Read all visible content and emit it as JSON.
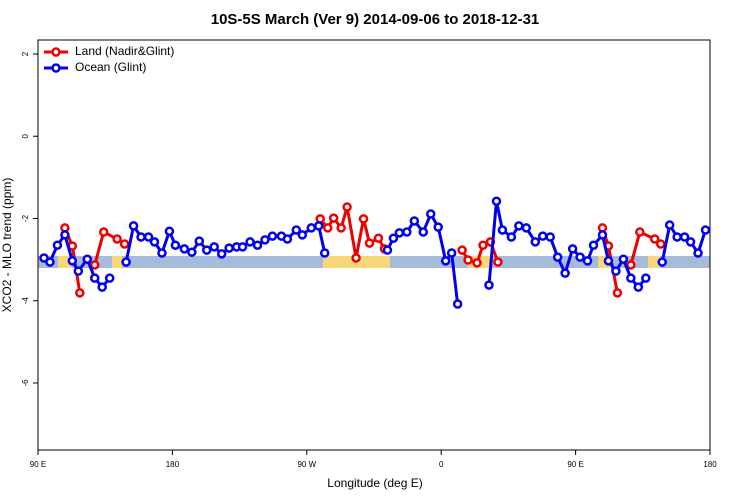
{
  "chart_data": {
    "type": "line",
    "title": "10S-5S March (Ver 9)   2014-09-06 to 2018-12-31",
    "x_label": "Longitude (deg E)",
    "y_label": "XCO2 - MLO trend (ppm)",
    "xlim": [
      90,
      540
    ],
    "xticks": [
      {
        "value": 90,
        "label": "90 E"
      },
      {
        "value": 180,
        "label": "180"
      },
      {
        "value": 270,
        "label": "90 W"
      },
      {
        "value": 360,
        "label": "0"
      },
      {
        "value": 450,
        "label": "90 E"
      },
      {
        "value": 540,
        "label": "180"
      }
    ],
    "ylim": [
      -7.63,
      2.34
    ],
    "yticks": [
      2,
      0,
      -2,
      -4,
      -6
    ],
    "legend": "top-left",
    "series": [
      {
        "name": "Land (Nadir&Glint)",
        "color": "#ee0000",
        "x": [
          108,
          113,
          118,
          null,
          128,
          134,
          143,
          148,
          null,
          279,
          284,
          288,
          293,
          297,
          303,
          308,
          312,
          318,
          322,
          null,
          374,
          378,
          384,
          388,
          393,
          398,
          null,
          468,
          472,
          478,
          null,
          487,
          493,
          503,
          507
        ],
        "values": [
          -2.23,
          -2.67,
          -3.81,
          null,
          -3.13,
          -2.33,
          -2.5,
          -2.62,
          null,
          -2.01,
          -2.23,
          -1.99,
          -2.23,
          -1.72,
          -2.96,
          -2.01,
          -2.6,
          -2.48,
          -2.74,
          null,
          -2.77,
          -3.01,
          -3.08,
          -2.65,
          -2.57,
          -3.06,
          null,
          -2.23,
          -2.67,
          -3.81,
          null,
          -3.13,
          -2.33,
          -2.5,
          -2.62
        ]
      },
      {
        "name": "Ocean (Glint)",
        "color": "#0000ee",
        "x": [
          94,
          98,
          103,
          108,
          113,
          117,
          123,
          128,
          133,
          138,
          null,
          149,
          154,
          159,
          164,
          168,
          173,
          178,
          182,
          188,
          193,
          198,
          203,
          208,
          213,
          218,
          223,
          227,
          232,
          237,
          242,
          247,
          253,
          257,
          263,
          267,
          273,
          278,
          282,
          null,
          324,
          328,
          332,
          337,
          342,
          348,
          353,
          358,
          363,
          367,
          371,
          null,
          392,
          397,
          401,
          407,
          412,
          417,
          423,
          428,
          433,
          438,
          443,
          448,
          453,
          458,
          462,
          468,
          472,
          477,
          482,
          487,
          492,
          497,
          null,
          508,
          513,
          518,
          523,
          527,
          532,
          537
        ],
        "values": [
          -2.96,
          -3.06,
          -2.65,
          -2.4,
          -3.03,
          -3.28,
          -2.99,
          -3.45,
          -3.67,
          -3.45,
          null,
          -3.06,
          -2.18,
          -2.45,
          -2.45,
          -2.57,
          -2.84,
          -2.31,
          -2.65,
          -2.74,
          -2.82,
          -2.55,
          -2.77,
          -2.69,
          -2.86,
          -2.72,
          -2.69,
          -2.69,
          -2.57,
          -2.65,
          -2.52,
          -2.43,
          -2.43,
          -2.5,
          -2.28,
          -2.4,
          -2.23,
          -2.18,
          -2.84,
          null,
          -2.77,
          -2.48,
          -2.35,
          -2.33,
          -2.06,
          -2.33,
          -1.89,
          -2.21,
          -3.03,
          -2.84,
          -4.08,
          null,
          -3.62,
          -1.58,
          -2.28,
          -2.45,
          -2.18,
          -2.23,
          -2.57,
          -2.43,
          -2.45,
          -2.94,
          -3.33,
          -2.74,
          -2.94,
          -3.03,
          -2.65,
          -2.4,
          -3.03,
          -3.28,
          -2.99,
          -3.45,
          -3.67,
          -3.45,
          null,
          -3.06,
          -2.16,
          -2.45,
          -2.45,
          -2.57,
          -2.84,
          -2.28
        ]
      }
    ]
  }
}
